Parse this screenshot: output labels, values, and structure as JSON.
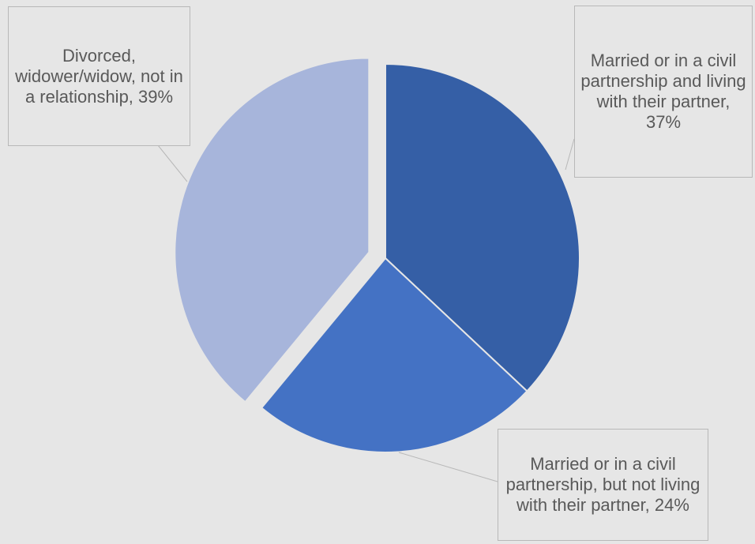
{
  "chart_data": {
    "type": "pie",
    "title": "",
    "slices": [
      {
        "label": "Married or in a civil partnership and living with their partner, 37%",
        "value": 37,
        "color": "#355fa6",
        "exploded": false
      },
      {
        "label": "Married or in a civil partnership, but not living with their partner, 24%",
        "value": 24,
        "color": "#4472c4",
        "exploded": false
      },
      {
        "label": "Divorced, widower/widow, not in a relationship, 39%",
        "value": 39,
        "color": "#a7b5db",
        "exploded": true
      }
    ],
    "legend": "none",
    "data_labels": "callouts"
  }
}
